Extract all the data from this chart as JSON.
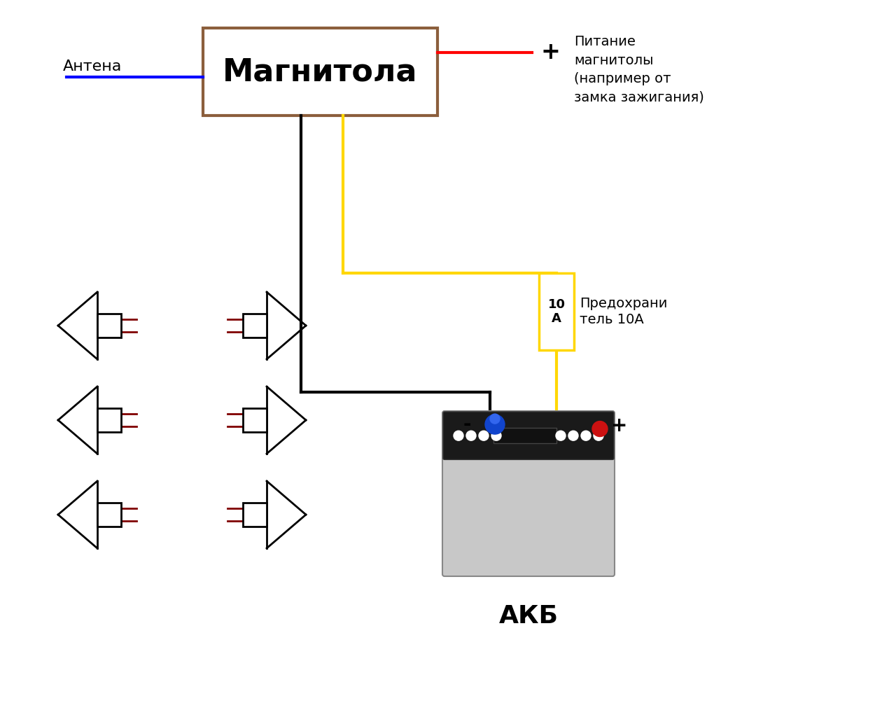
{
  "bg_color": "#ffffff",
  "magnitola_text": "Магнитола",
  "magnitola_box_color": "#8B5E3C",
  "antenna_label": "Антена",
  "plus_label": "+",
  "power_label": "Питание\nмагнитолы\n(например от\nзамка зажигания)",
  "fuse_label": "10\nА",
  "fuse_label2": "Предохрани\nтель 10А",
  "akb_label": "АКБ",
  "wire_lw": 3.0
}
